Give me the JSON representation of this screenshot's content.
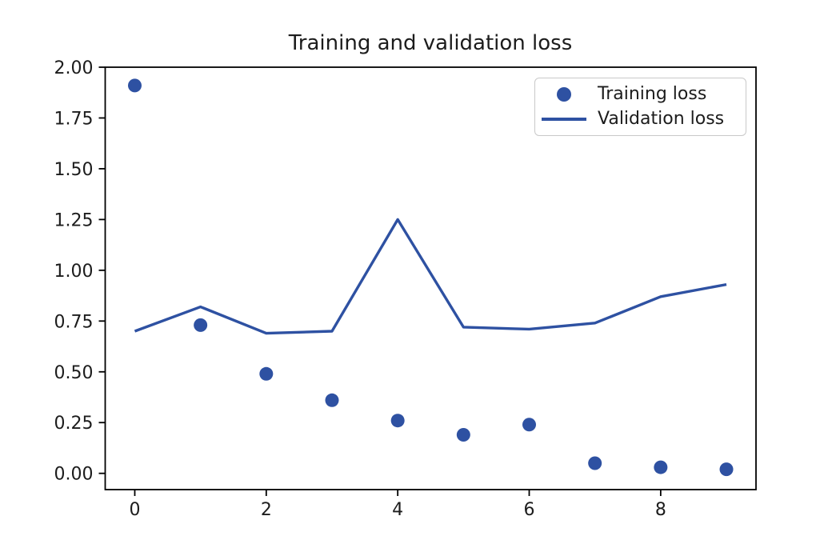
{
  "chart_data": {
    "type": "scatter+line",
    "title": "Training and validation loss",
    "x": [
      0,
      1,
      2,
      3,
      4,
      5,
      6,
      7,
      8,
      9
    ],
    "series": [
      {
        "name": "Training loss",
        "type": "scatter",
        "marker": "circle",
        "color": "#2e51a2",
        "values": [
          1.91,
          0.73,
          0.49,
          0.36,
          0.26,
          0.19,
          0.24,
          0.05,
          0.03,
          0.02
        ]
      },
      {
        "name": "Validation loss",
        "type": "line",
        "color": "#2e51a2",
        "values": [
          0.7,
          0.82,
          0.69,
          0.7,
          1.25,
          0.72,
          0.71,
          0.74,
          0.87,
          0.93
        ]
      }
    ],
    "xlim": [
      -0.45,
      9.45
    ],
    "ylim": [
      -0.08,
      2.0
    ],
    "x_ticks": {
      "values": [
        0,
        2,
        4,
        6,
        8
      ],
      "labels": [
        "0",
        "2",
        "4",
        "6",
        "8"
      ]
    },
    "y_ticks": {
      "values": [
        0.0,
        0.25,
        0.5,
        0.75,
        1.0,
        1.25,
        1.5,
        1.75,
        2.0
      ],
      "labels": [
        "0.00",
        "0.25",
        "0.50",
        "0.75",
        "1.00",
        "1.25",
        "1.50",
        "1.75",
        "2.00"
      ]
    },
    "grid": false,
    "legend_position": "upper right",
    "colors": {
      "accent_blue": "#2e51a2",
      "text": "#1c1c1c",
      "spine": "#000000",
      "legend_border": "#c9c9c9",
      "background": "#ffffff"
    }
  }
}
